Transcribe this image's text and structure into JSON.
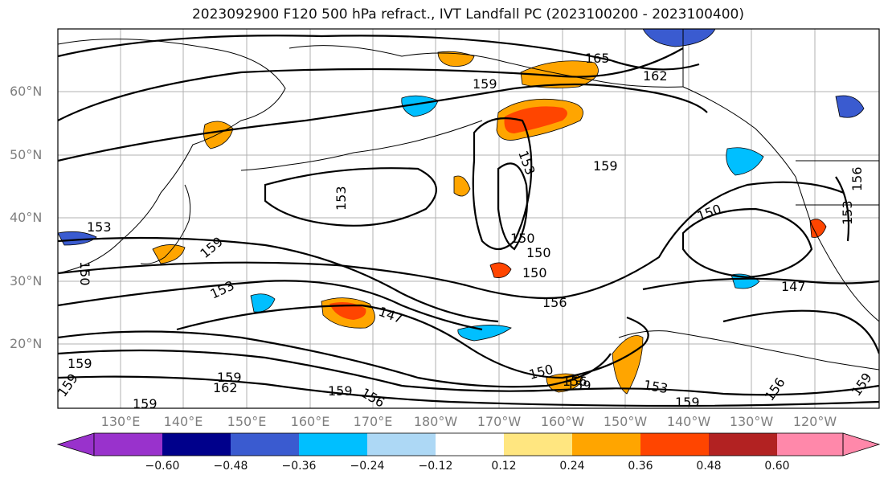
{
  "title": "2023092900 F120 500 hPa refract., IVT Landfall PC (2023100200 - 2023100400)",
  "map": {
    "lat_labels": [
      "60°N",
      "50°N",
      "40°N",
      "30°N",
      "20°N"
    ],
    "lon_labels": [
      "130°E",
      "140°E",
      "150°E",
      "160°E",
      "170°E",
      "180°W",
      "170°W",
      "160°W",
      "150°W",
      "140°W",
      "130°W",
      "120°W"
    ],
    "contour_labels": [
      "165",
      "162",
      "159",
      "159",
      "153",
      "153",
      "150",
      "150",
      "156",
      "147",
      "150",
      "147",
      "159",
      "153",
      "150",
      "153",
      "156",
      "159",
      "159",
      "159",
      "162",
      "159",
      "156",
      "150",
      "159",
      "153",
      "159",
      "156",
      "159",
      "159",
      "153",
      "156",
      "150"
    ],
    "fill_colors": {
      "neg_strong": "#3a5bd0",
      "neg_mid": "#00bfff",
      "neg_weak": "#add8f5",
      "pos_weak": "#ffe680",
      "pos_mid": "#ffa500",
      "pos_strong": "#ff4500",
      "pos_max": "#b22222"
    }
  },
  "colorbar": {
    "colors": [
      "#9932cc",
      "#00008b",
      "#3a5bd0",
      "#00bfff",
      "#add8f5",
      "#ffffff",
      "#ffffff",
      "#ffe680",
      "#ffa500",
      "#ff4500",
      "#b22222",
      "#ff88aa"
    ],
    "tick_labels": [
      "−0.60",
      "−0.48",
      "−0.36",
      "−0.24",
      "−0.12",
      "0.12",
      "0.24",
      "0.36",
      "0.48",
      "0.60"
    ]
  }
}
